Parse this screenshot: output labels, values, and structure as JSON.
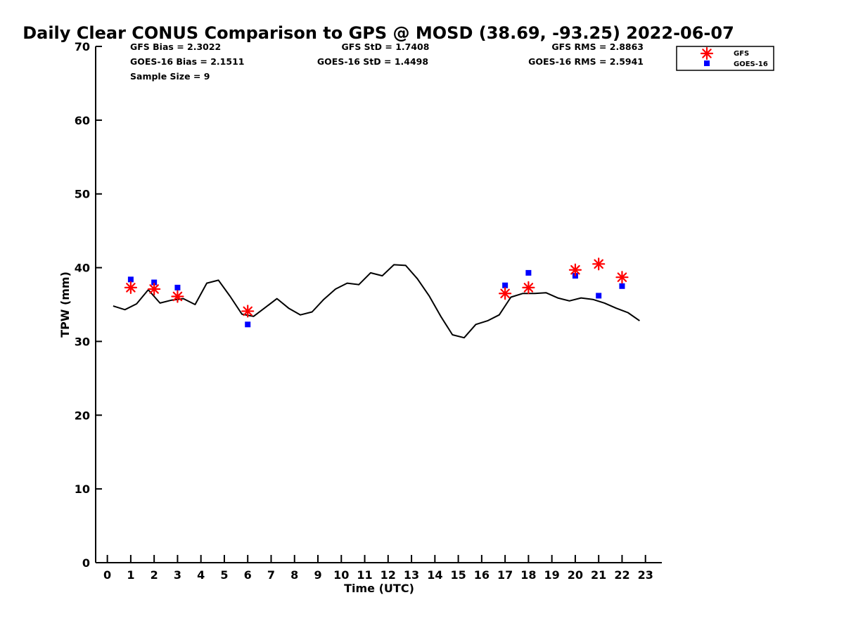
{
  "chart_data": {
    "type": "line+scatter",
    "title": "Daily Clear CONUS Comparison to GPS @ MOSD (38.69, -93.25) 2022-06-07",
    "xlabel": "Time (UTC)",
    "ylabel": "TPW (mm)",
    "xlim": [
      -0.5,
      23.7
    ],
    "ylim": [
      0,
      70
    ],
    "x_ticks": [
      0,
      1,
      2,
      3,
      4,
      5,
      6,
      7,
      8,
      9,
      10,
      11,
      12,
      13,
      14,
      15,
      16,
      17,
      18,
      19,
      20,
      21,
      22,
      23
    ],
    "y_ticks": [
      0,
      10,
      20,
      30,
      40,
      50,
      60,
      70
    ],
    "grid": false,
    "legend_position": "top-right-outside",
    "stats": [
      {
        "label": "GFS Bias = 2.3022"
      },
      {
        "label": "GOES-16 Bias = 2.1511"
      },
      {
        "label": "Sample Size = 9"
      },
      {
        "label": "GFS StD = 1.7408"
      },
      {
        "label": "GOES-16 StD = 1.4498"
      },
      {
        "label": "GFS RMS = 2.8863"
      },
      {
        "label": "GOES-16 RMS = 2.5941"
      }
    ],
    "gps_line": {
      "color": "#000000",
      "points": [
        [
          0.25,
          34.8
        ],
        [
          0.75,
          34.3
        ],
        [
          1.25,
          35.1
        ],
        [
          1.75,
          37.0
        ],
        [
          2.25,
          35.2
        ],
        [
          2.75,
          35.6
        ],
        [
          3.25,
          35.8
        ],
        [
          3.75,
          35.0
        ],
        [
          4.25,
          37.9
        ],
        [
          4.75,
          38.3
        ],
        [
          5.25,
          36.1
        ],
        [
          5.75,
          33.7
        ],
        [
          6.25,
          33.4
        ],
        [
          6.75,
          34.6
        ],
        [
          7.25,
          35.8
        ],
        [
          7.75,
          34.5
        ],
        [
          8.25,
          33.6
        ],
        [
          8.75,
          34.0
        ],
        [
          9.25,
          35.7
        ],
        [
          9.75,
          37.1
        ],
        [
          10.25,
          37.9
        ],
        [
          10.75,
          37.7
        ],
        [
          11.25,
          39.3
        ],
        [
          11.75,
          38.9
        ],
        [
          12.25,
          40.4
        ],
        [
          12.75,
          40.3
        ],
        [
          13.25,
          38.5
        ],
        [
          13.75,
          36.2
        ],
        [
          14.25,
          33.4
        ],
        [
          14.75,
          30.9
        ],
        [
          15.25,
          30.5
        ],
        [
          15.75,
          32.3
        ],
        [
          16.25,
          32.8
        ],
        [
          16.75,
          33.6
        ],
        [
          17.25,
          36.0
        ],
        [
          17.75,
          36.5
        ],
        [
          18.25,
          36.5
        ],
        [
          18.75,
          36.6
        ],
        [
          19.25,
          35.9
        ],
        [
          19.75,
          35.5
        ],
        [
          20.25,
          35.9
        ],
        [
          20.75,
          35.7
        ],
        [
          21.25,
          35.2
        ],
        [
          21.75,
          34.5
        ],
        [
          22.25,
          33.9
        ],
        [
          22.75,
          32.8
        ]
      ]
    },
    "series": [
      {
        "name": "GFS",
        "color": "#ff0000",
        "marker": "asterisk",
        "points": [
          [
            1,
            37.3
          ],
          [
            2,
            37.1
          ],
          [
            3,
            36.1
          ],
          [
            6,
            34.1
          ],
          [
            17,
            36.5
          ],
          [
            18,
            37.3
          ],
          [
            20,
            39.7
          ],
          [
            21,
            40.5
          ],
          [
            22,
            38.7
          ]
        ]
      },
      {
        "name": "GOES-16",
        "color": "#0000ff",
        "marker": "square",
        "points": [
          [
            1,
            38.4
          ],
          [
            2,
            38.0
          ],
          [
            3,
            37.3
          ],
          [
            6,
            32.3
          ],
          [
            17,
            37.6
          ],
          [
            18,
            39.3
          ],
          [
            20,
            38.9
          ],
          [
            21,
            36.2
          ],
          [
            22,
            37.5
          ]
        ]
      }
    ]
  }
}
